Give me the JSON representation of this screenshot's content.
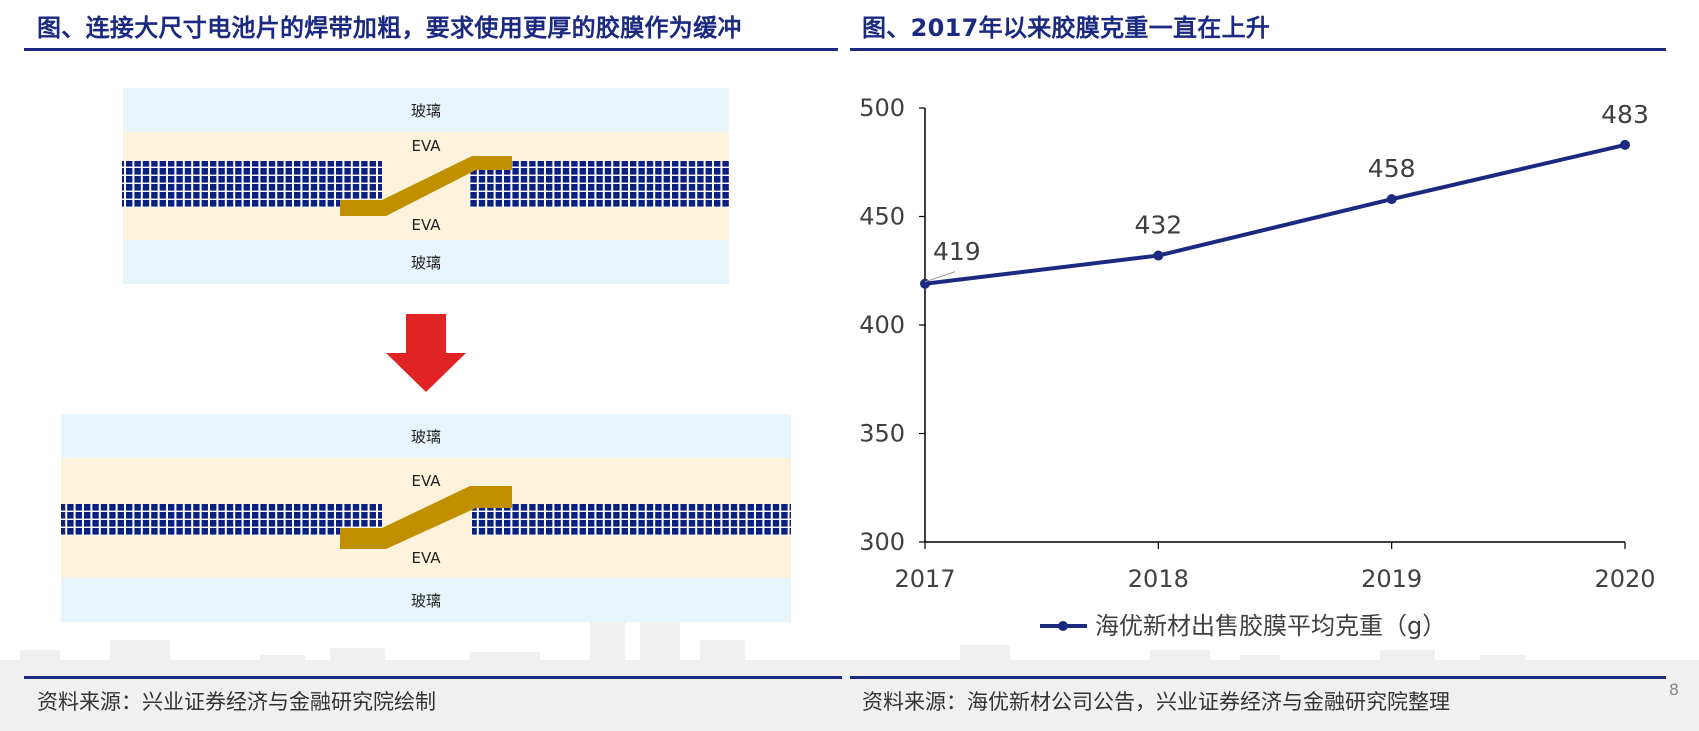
{
  "left_panel": {
    "title": "图、连接大尺寸电池片的焊带加粗，要求使用更厚的胶膜作为缓冲",
    "source": "资料来源：兴业证券经济与金融研究院绘制",
    "top_diagram": {
      "glass_top": "玻璃",
      "eva_top": "EVA",
      "eva_bottom": "EVA",
      "glass_bottom": "玻璃"
    },
    "bottom_diagram": {
      "glass_top": "玻璃",
      "eva_top": "EVA",
      "eva_bottom": "EVA",
      "glass_bottom": "玻璃"
    }
  },
  "right_panel": {
    "title": "图、2017年以来胶膜克重一直在上升",
    "source": "资料来源：海优新材公司公告，兴业证券经济与金融研究院整理"
  },
  "page_number": "8",
  "colors": {
    "brand_navy": "#1b2a80",
    "glass": "#e8f4fb",
    "eva": "#fdf3dc",
    "cell": "#0d1f80",
    "ribbon": "#c09000",
    "arrow": "#e02424"
  },
  "chart_data": {
    "type": "line",
    "categories": [
      "2017",
      "2018",
      "2019",
      "2020"
    ],
    "series": [
      {
        "name": "海优新材出售胶膜平均克重（g）",
        "values": [
          419,
          432,
          458,
          483
        ],
        "color": "#1b2a80"
      }
    ],
    "data_labels": [
      "419",
      "432",
      "458",
      "483"
    ],
    "y_ticks": [
      "300",
      "350",
      "400",
      "450",
      "500"
    ],
    "ylim": [
      300,
      500
    ],
    "grid": false,
    "legend": "bottom"
  }
}
